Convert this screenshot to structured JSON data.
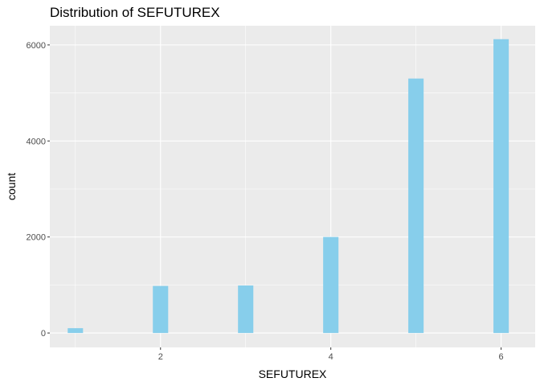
{
  "chart_data": {
    "type": "bar",
    "title": "Distribution of SEFUTUREX",
    "xlabel": "SEFUTUREX",
    "ylabel": "count",
    "x": [
      1,
      2,
      3,
      4,
      5,
      6
    ],
    "values": [
      100,
      980,
      990,
      2000,
      5300,
      6120
    ],
    "xlim": [
      0.7,
      6.4
    ],
    "ylim": [
      -300,
      6400
    ],
    "x_ticks": [
      2,
      4,
      6
    ],
    "y_ticks": [
      0,
      2000,
      4000,
      6000
    ],
    "x_tick_labels": [
      "2",
      "4",
      "6"
    ],
    "y_tick_labels": [
      "0",
      "2000",
      "4000",
      "6000"
    ],
    "grid": true,
    "bar_color": "#87CEEB",
    "panel_color": "#EBEBEB",
    "grid_color": "#FFFFFF"
  }
}
